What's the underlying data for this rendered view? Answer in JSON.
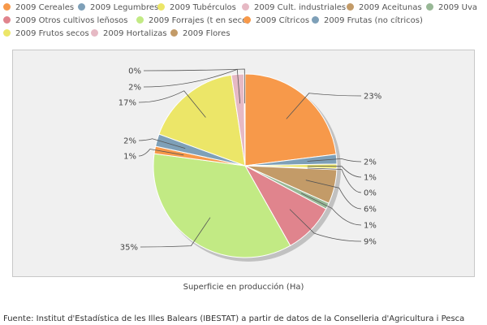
{
  "chart_data": {
    "type": "pie",
    "caption": "Superficie en producción (Ha)",
    "legend_position": "top",
    "categories": [
      "2009 Cereales",
      "2009 Legumbres",
      "2009 Tubérculos",
      "2009 Cult. industriales",
      "2009 Aceitunas",
      "2009 Uva",
      "2009 Otros cultivos leñosos",
      "2009 Forrajes (t en seco)",
      "2009 Cítricos",
      "2009 Frutas (no cítricos)",
      "2009 Frutos secos",
      "2009 Hortalizas",
      "2009 Flores"
    ],
    "colors": [
      "#f7994a",
      "#7ea0b8",
      "#ece668",
      "#e6b9c4",
      "#c39b68",
      "#98b896",
      "#e0848d",
      "#c2ea84",
      "#f7994a",
      "#7ea0b8",
      "#ece668",
      "#e6b9c4",
      "#c39b68"
    ],
    "slices": [
      {
        "category": "2009 Cereales",
        "value": 23,
        "label": "23%"
      },
      {
        "category": "2009 Legumbres",
        "value": 1.7,
        "label": "2%"
      },
      {
        "category": "2009 Tubérculos",
        "value": 0.8,
        "label": "1%"
      },
      {
        "category": "2009 Cult. industriales",
        "value": 0.2,
        "label": "0%"
      },
      {
        "category": "2009 Aceitunas",
        "value": 6,
        "label": "6%"
      },
      {
        "category": "2009 Uva",
        "value": 1.1,
        "label": "1%"
      },
      {
        "category": "2009 Otros cultivos leñosos",
        "value": 9,
        "label": "9%"
      },
      {
        "category": "2009 Forrajes (t en seco)",
        "value": 35.3,
        "label": "35%"
      },
      {
        "category": "2009 Cítricos",
        "value": 1.3,
        "label": "1%"
      },
      {
        "category": "2009 Frutas (no cítricos)",
        "value": 2.2,
        "label": "2%"
      },
      {
        "category": "2009 Frutos secos",
        "value": 17,
        "label": "17%"
      },
      {
        "category": "2009 Hortalizas",
        "value": 2.2,
        "label": "2%"
      },
      {
        "category": "2009 Flores",
        "value": 0.2,
        "label": "0%"
      }
    ]
  },
  "source": "Fuente: Institut d'Estadística de les Illes Balears (IBESTAT) a partir de datos de la Conselleria d'Agricultura i Pesca"
}
